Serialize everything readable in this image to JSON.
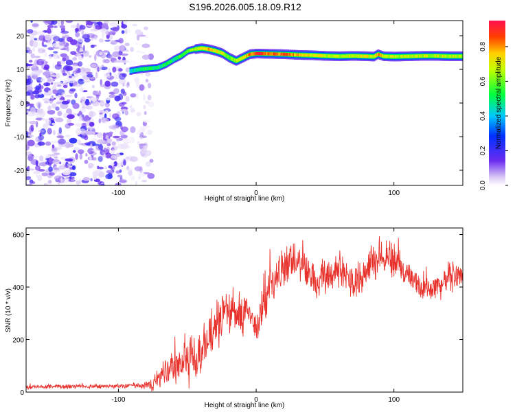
{
  "title": "S196.2026.005.18.09.R12",
  "chart_data": [
    {
      "type": "heatmap",
      "panel": "spectrogram",
      "xlabel": "Height of straight line (km)",
      "ylabel": "Frequency (Hz)",
      "xlim": [
        -167,
        150
      ],
      "ylim": [
        -24.5,
        24.5
      ],
      "xticks": [
        -100,
        0,
        100
      ],
      "yticks": [
        -20,
        -10,
        0,
        10,
        20
      ],
      "noise_region_x": [
        -167,
        -82
      ],
      "noise_fringe_x": [
        -95,
        -82
      ],
      "ridge": {
        "x": [
          -92,
          -85,
          -78,
          -72,
          -66,
          -60,
          -55,
          -50,
          -45,
          -40,
          -35,
          -30,
          -25,
          -20,
          -15,
          -10,
          -5,
          0,
          10,
          20,
          30,
          40,
          50,
          60,
          70,
          80,
          85,
          88,
          92,
          100,
          110,
          120,
          130,
          140,
          150
        ],
        "y": [
          9.5,
          10,
          10.3,
          10.5,
          11.5,
          13,
          14,
          15.5,
          16,
          16.3,
          16,
          15.5,
          14.8,
          13.5,
          12.5,
          13.5,
          14.5,
          14.7,
          14.6,
          14.5,
          14.3,
          14.2,
          14.0,
          13.9,
          14.0,
          13.9,
          13.8,
          14.5,
          13.9,
          13.8,
          13.9,
          14.0,
          14.0,
          13.9,
          13.9
        ],
        "amplitude": [
          0.45,
          0.5,
          0.55,
          0.5,
          0.55,
          0.5,
          0.6,
          0.65,
          0.7,
          0.75,
          0.8,
          0.75,
          0.7,
          0.6,
          0.65,
          0.75,
          0.85,
          0.95,
          0.85,
          0.9,
          0.8,
          0.75,
          0.7,
          0.7,
          0.7,
          0.75,
          0.7,
          0.85,
          0.75,
          0.7,
          0.7,
          0.7,
          0.7,
          0.7,
          0.7
        ]
      },
      "colorbar": {
        "label": "Normalized spectral amplitude",
        "range": [
          0.0,
          0.95
        ],
        "ticks": [
          0.0,
          0.2,
          0.4,
          0.6,
          0.8
        ],
        "tick_labels": [
          "0.0",
          "0.2",
          "0.4",
          "0.6",
          "0.8"
        ]
      }
    },
    {
      "type": "line",
      "panel": "snr",
      "xlabel": "Height of straight line (km)",
      "ylabel": "SNR (10 * v/v)",
      "xlim": [
        -167,
        150
      ],
      "ylim": [
        0,
        625
      ],
      "xticks": [
        -100,
        0,
        100
      ],
      "yticks": [
        0,
        200,
        400,
        600
      ],
      "series": [
        {
          "name": "SNR",
          "color": "#e8302a",
          "x": [
            -167,
            -150,
            -130,
            -110,
            -95,
            -85,
            -80,
            -75,
            -70,
            -65,
            -60,
            -55,
            -50,
            -45,
            -40,
            -35,
            -30,
            -25,
            -20,
            -15,
            -10,
            -5,
            0,
            5,
            10,
            15,
            20,
            25,
            30,
            35,
            40,
            45,
            50,
            55,
            60,
            65,
            70,
            75,
            80,
            85,
            90,
            95,
            100,
            105,
            110,
            115,
            120,
            125,
            130,
            135,
            140,
            145,
            150
          ],
          "y": [
            18,
            20,
            22,
            22,
            24,
            25,
            28,
            35,
            50,
            70,
            90,
            110,
            130,
            135,
            145,
            195,
            245,
            285,
            310,
            315,
            300,
            285,
            255,
            320,
            390,
            440,
            475,
            490,
            495,
            465,
            445,
            420,
            450,
            455,
            470,
            440,
            415,
            435,
            470,
            500,
            510,
            520,
            505,
            470,
            440,
            420,
            400,
            395,
            400,
            410,
            440,
            450,
            445
          ],
          "noise_amplitude": [
            10,
            10,
            10,
            10,
            12,
            15,
            20,
            35,
            55,
            70,
            80,
            90,
            150,
            120,
            110,
            110,
            110,
            105,
            100,
            105,
            100,
            90,
            90,
            95,
            95,
            90,
            85,
            80,
            80,
            80,
            80,
            70,
            80,
            80,
            80,
            75,
            75,
            75,
            85,
            90,
            95,
            100,
            90,
            70,
            65,
            60,
            55,
            50,
            55,
            60,
            70,
            70,
            70
          ]
        }
      ]
    }
  ]
}
